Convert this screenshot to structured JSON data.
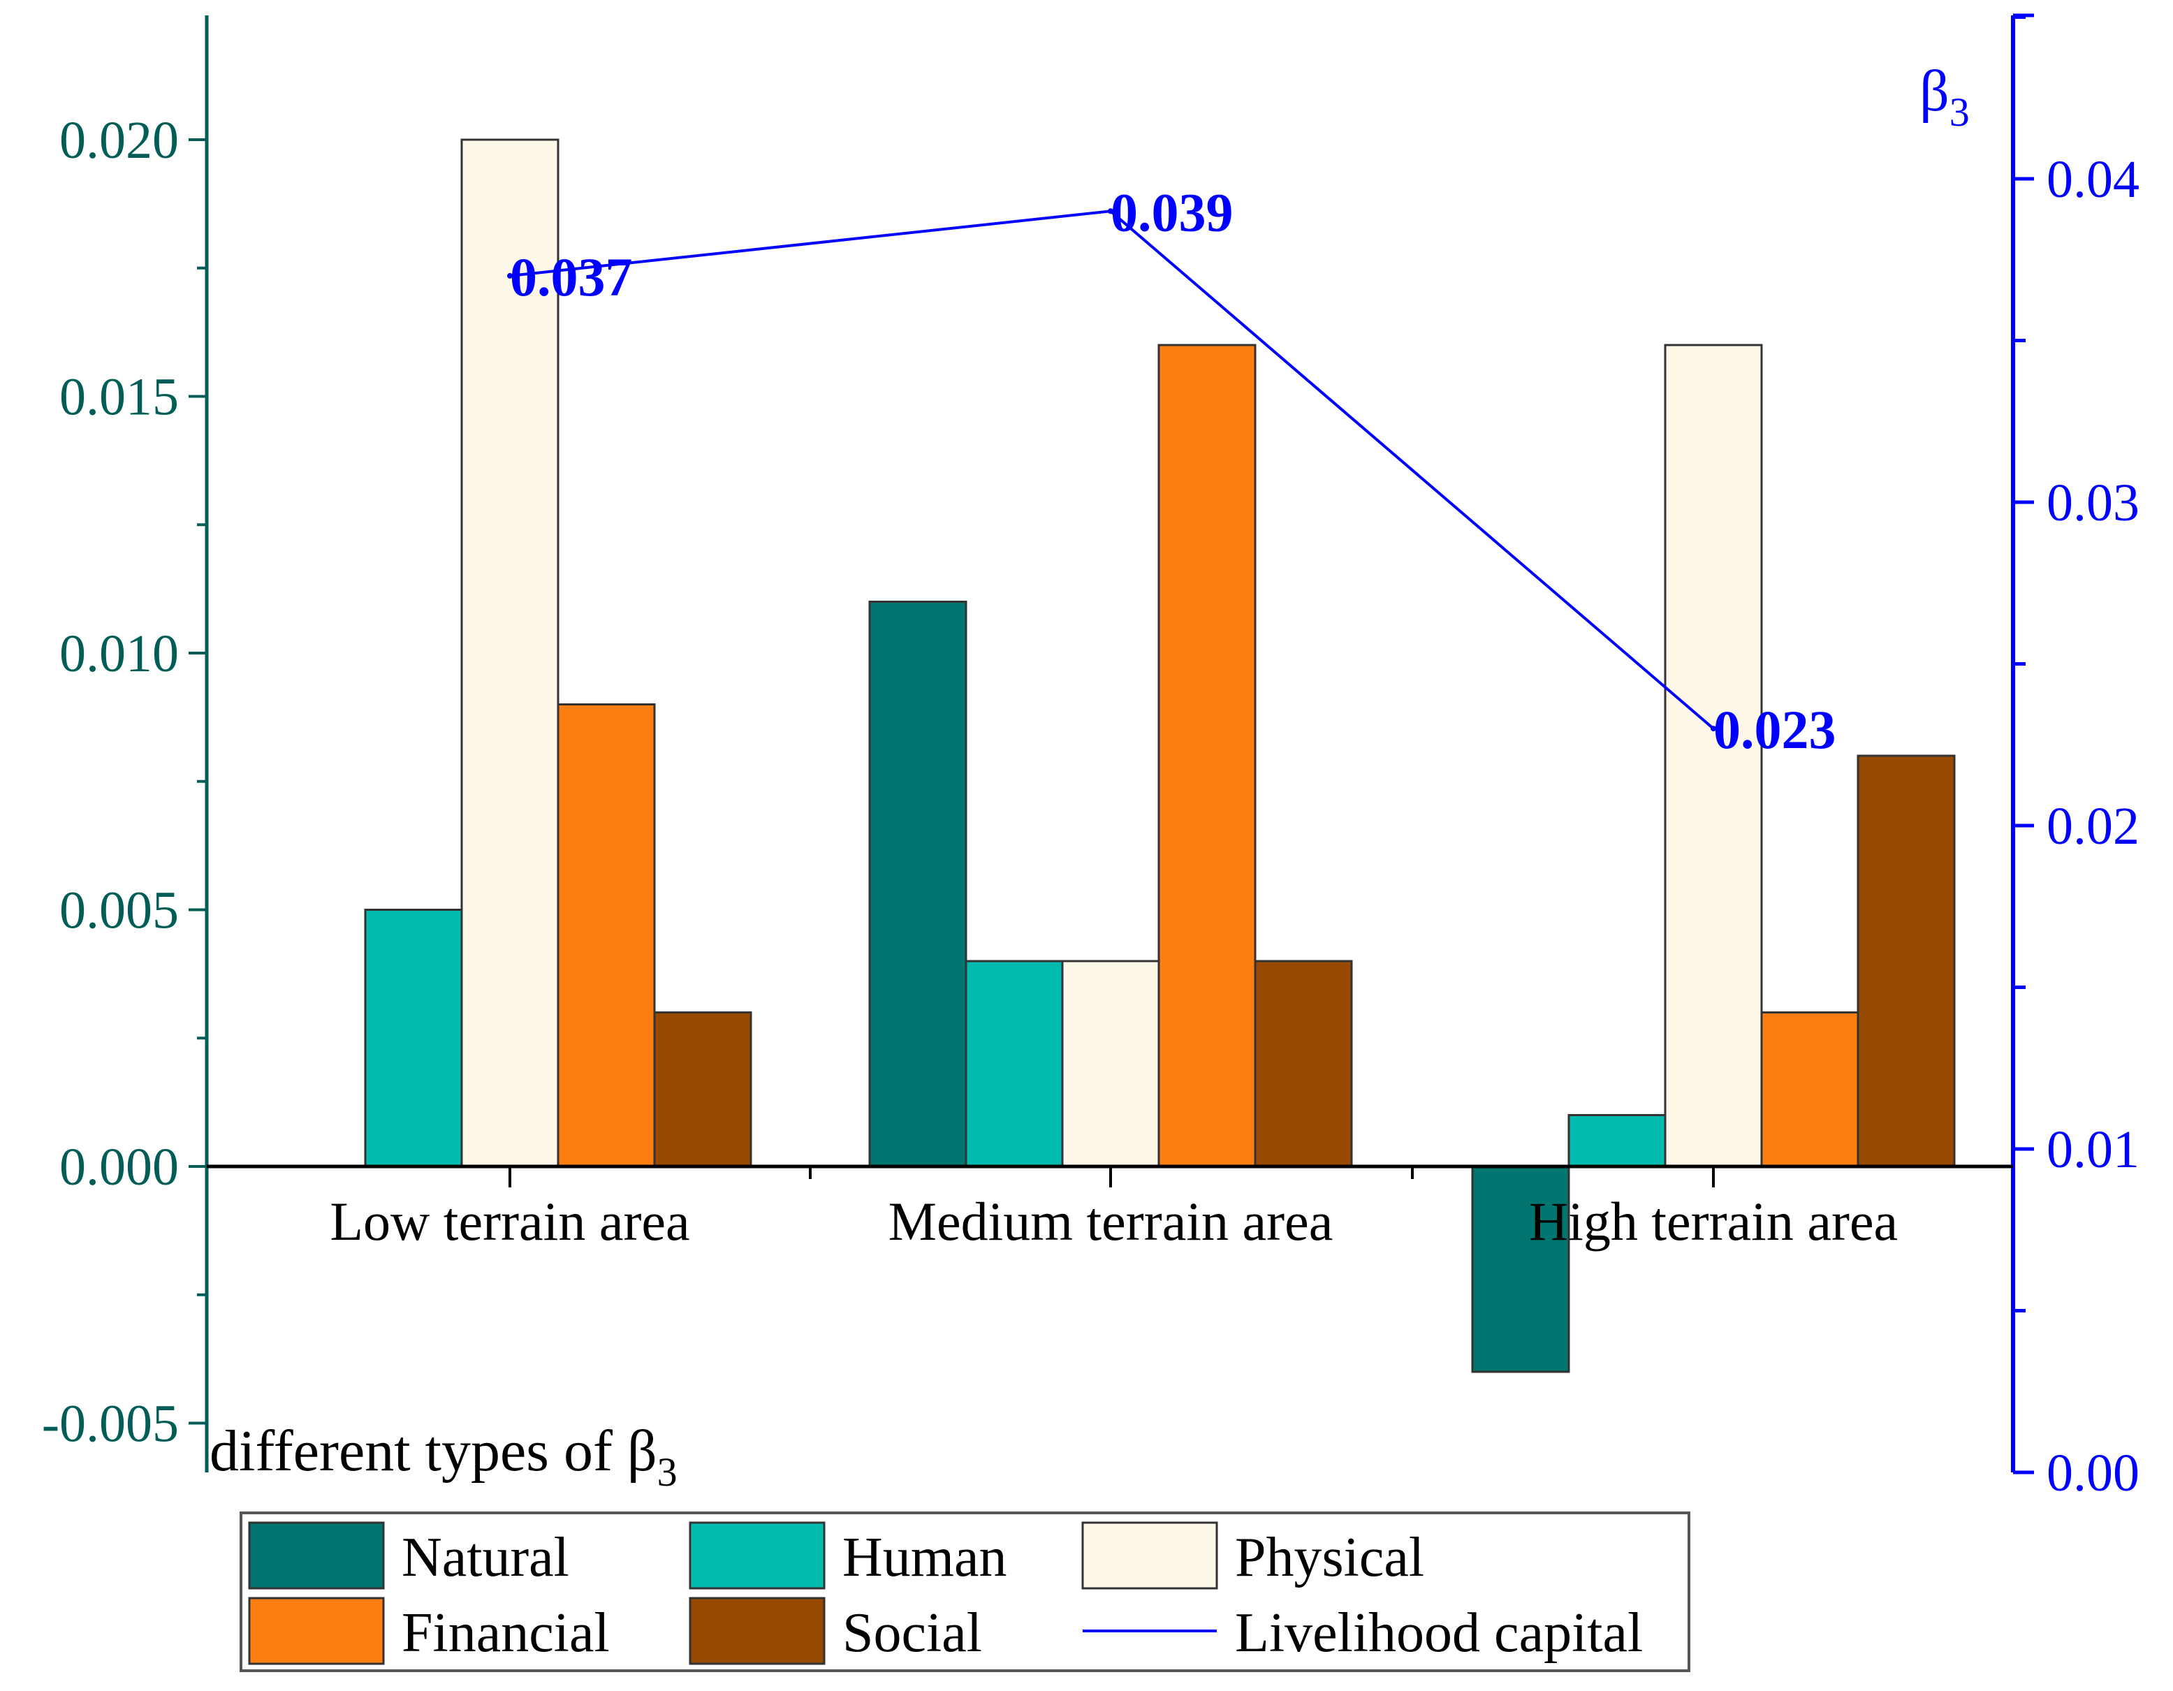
{
  "chart_data": {
    "type": "bar",
    "categories": [
      "Low terrain area",
      "Medium terrain area",
      "High terrain area"
    ],
    "series": [
      {
        "name": "Natural",
        "values": [
          0,
          0.011,
          -0.004
        ],
        "color": "#017570"
      },
      {
        "name": "Human",
        "values": [
          0.005,
          0.004,
          0.001
        ],
        "color": "#02bcb0"
      },
      {
        "name": "Physical",
        "values": [
          0.02,
          0.004,
          0.016
        ],
        "color": "#fdf8e8"
      },
      {
        "name": "Financial",
        "values": [
          0.009,
          0.016,
          0.003
        ],
        "color": "#fd7f11"
      },
      {
        "name": "Social",
        "values": [
          0.003,
          0.004,
          0.008
        ],
        "color": "#984901"
      }
    ],
    "line_series": {
      "name": "Livelihood capital",
      "values": [
        0.037,
        0.039,
        0.023
      ],
      "labels": [
        "0.037",
        "0.039",
        "0.023"
      ],
      "color": "#0000ff",
      "axis": "right"
    },
    "left_axis": {
      "title": "different types of β",
      "title_sub": "3",
      "ylim": [
        -0.005,
        0.022
      ],
      "ticks": [
        -0.005,
        0.0,
        0.005,
        0.01,
        0.015,
        0.02
      ],
      "tick_labels": [
        "-0.005",
        "0.000",
        "0.005",
        "0.010",
        "0.015",
        "0.020"
      ],
      "color": "#015d56"
    },
    "right_axis": {
      "title": "β",
      "title_sub": "3",
      "ylim": [
        0.0,
        0.045
      ],
      "ticks": [
        0.0,
        0.01,
        0.02,
        0.03,
        0.04
      ],
      "tick_labels": [
        "0.00",
        "0.01",
        "0.02",
        "0.03",
        "0.04"
      ],
      "color": "#0000ff"
    },
    "legend_position": "bottom",
    "grid": false
  }
}
